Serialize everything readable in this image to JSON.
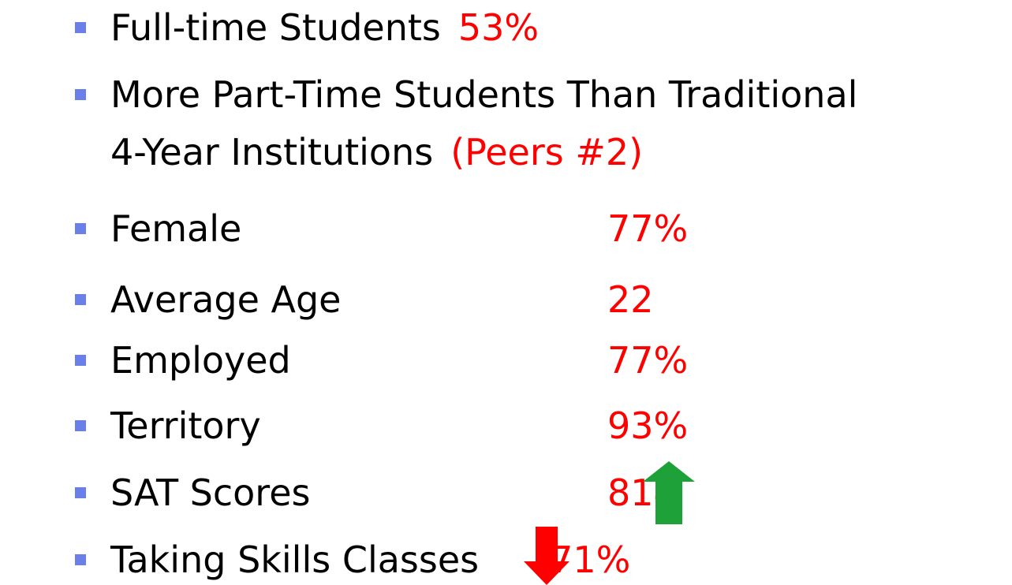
{
  "items": [
    {
      "label": "Full-time Students",
      "value": "53%"
    },
    {
      "label": "More Part-Time Students Than Traditional",
      "label2": "4-Year Institutions",
      "value": "(Peers #2)"
    },
    {
      "label": "Female",
      "value": "77%"
    },
    {
      "label": "Average Age",
      "value": "22"
    },
    {
      "label": "Employed",
      "value": "77%"
    },
    {
      "label": "Territory",
      "value": "93%"
    },
    {
      "label": "SAT Scores",
      "value": "814"
    },
    {
      "label": "Taking Skills Classes",
      "value": "71%"
    }
  ]
}
